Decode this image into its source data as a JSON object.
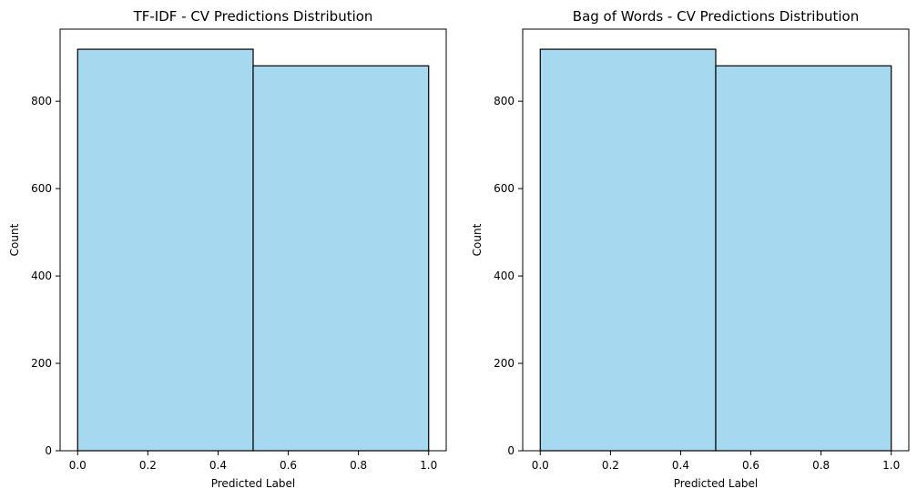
{
  "chart_data": [
    {
      "type": "bar",
      "title": "TF-IDF - CV Predictions Distribution",
      "xlabel": "Predicted Label",
      "ylabel": "Count",
      "bins": [
        {
          "start": 0.0,
          "end": 0.5,
          "count": 919
        },
        {
          "start": 0.5,
          "end": 1.0,
          "count": 881
        }
      ],
      "xticks": [
        "0.0",
        "0.2",
        "0.4",
        "0.6",
        "0.8",
        "1.0"
      ],
      "yticks": [
        "0",
        "200",
        "400",
        "600",
        "800"
      ],
      "xlim": [
        -0.05,
        1.05
      ],
      "ylim": [
        0,
        965
      ],
      "grid": false,
      "color": "#a6d9ef",
      "edgecolor": "#000000"
    },
    {
      "type": "bar",
      "title": "Bag of Words - CV Predictions Distribution",
      "xlabel": "Predicted Label",
      "ylabel": "Count",
      "bins": [
        {
          "start": 0.0,
          "end": 0.5,
          "count": 919
        },
        {
          "start": 0.5,
          "end": 1.0,
          "count": 881
        }
      ],
      "xticks": [
        "0.0",
        "0.2",
        "0.4",
        "0.6",
        "0.8",
        "1.0"
      ],
      "yticks": [
        "0",
        "200",
        "400",
        "600",
        "800"
      ],
      "xlim": [
        -0.05,
        1.05
      ],
      "ylim": [
        0,
        965
      ],
      "grid": false,
      "color": "#a6d9ef",
      "edgecolor": "#000000"
    }
  ]
}
